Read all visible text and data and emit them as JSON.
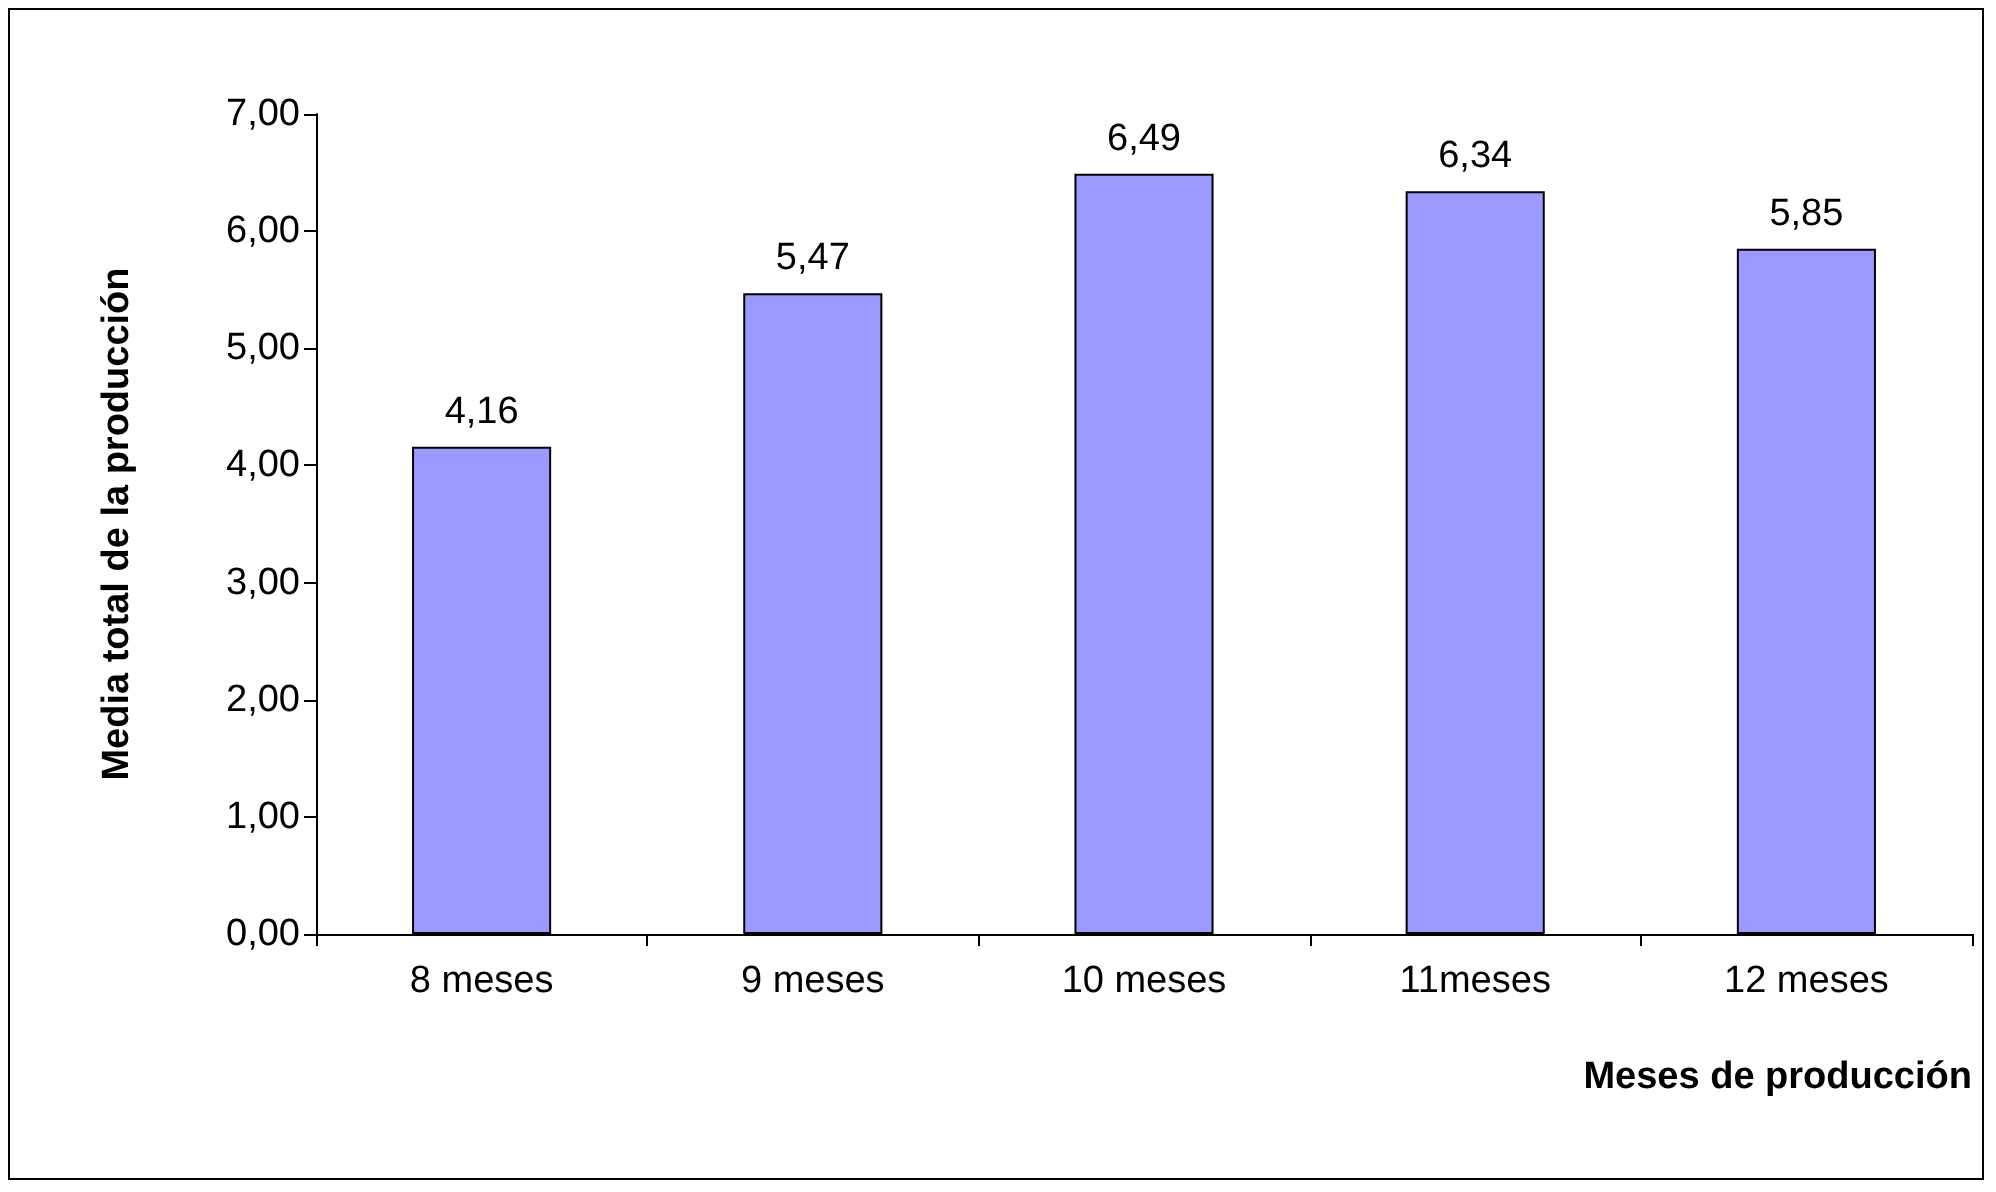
{
  "chart_data": {
    "type": "bar",
    "xlabel": "Meses de producción",
    "ylabel": "Media total de la producción",
    "categories": [
      "8 meses",
      "9 meses",
      "10 meses",
      "11meses",
      "12 meses"
    ],
    "values": [
      4.16,
      5.47,
      6.49,
      6.34,
      5.85
    ],
    "value_labels": [
      "4,16",
      "5,47",
      "6,49",
      "6,34",
      "5,85"
    ],
    "color": "#9999ff",
    "ylim": [
      0,
      7
    ],
    "yticks": [
      {
        "value": 0,
        "label": "0,00"
      },
      {
        "value": 1,
        "label": "1,00"
      },
      {
        "value": 2,
        "label": "2,00"
      },
      {
        "value": 3,
        "label": "3,00"
      },
      {
        "value": 4,
        "label": "4,00"
      },
      {
        "value": 5,
        "label": "5,00"
      },
      {
        "value": 6,
        "label": "6,00"
      },
      {
        "value": 7,
        "label": "7,00"
      }
    ],
    "grid": false
  }
}
